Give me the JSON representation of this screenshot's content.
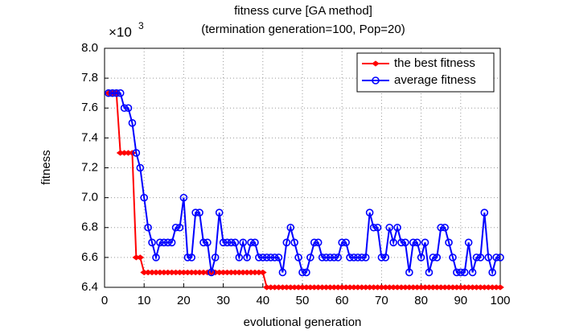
{
  "chart_data": {
    "type": "line",
    "title": "fitness curve [GA method]",
    "subtitle": "(termination generation=100, Pop=20)",
    "xlabel": "evolutional generation",
    "ylabel": "fitness",
    "multiplier_base": "×10",
    "multiplier_exponent": "3",
    "x": [
      1,
      2,
      3,
      4,
      5,
      6,
      7,
      8,
      9,
      10,
      11,
      12,
      13,
      14,
      15,
      16,
      17,
      18,
      19,
      20,
      21,
      22,
      23,
      24,
      25,
      26,
      27,
      28,
      29,
      30,
      31,
      32,
      33,
      34,
      35,
      36,
      37,
      38,
      39,
      40,
      41,
      42,
      43,
      44,
      45,
      46,
      47,
      48,
      49,
      50,
      51,
      52,
      53,
      54,
      55,
      56,
      57,
      58,
      59,
      60,
      61,
      62,
      63,
      64,
      65,
      66,
      67,
      68,
      69,
      70,
      71,
      72,
      73,
      74,
      75,
      76,
      77,
      78,
      79,
      80,
      81,
      82,
      83,
      84,
      85,
      86,
      87,
      88,
      89,
      90,
      91,
      92,
      93,
      94,
      95,
      96,
      97,
      98,
      99,
      100
    ],
    "series": [
      {
        "name": "the best fitness",
        "color": "#ff0000",
        "marker": "star",
        "values": [
          7.7,
          7.7,
          7.7,
          7.3,
          7.3,
          7.3,
          7.3,
          6.6,
          6.6,
          6.5,
          6.5,
          6.5,
          6.5,
          6.5,
          6.5,
          6.5,
          6.5,
          6.5,
          6.5,
          6.5,
          6.5,
          6.5,
          6.5,
          6.5,
          6.5,
          6.5,
          6.5,
          6.5,
          6.5,
          6.5,
          6.5,
          6.5,
          6.5,
          6.5,
          6.5,
          6.5,
          6.5,
          6.5,
          6.5,
          6.5,
          6.4,
          6.4,
          6.4,
          6.4,
          6.4,
          6.4,
          6.4,
          6.4,
          6.4,
          6.4,
          6.4,
          6.4,
          6.4,
          6.4,
          6.4,
          6.4,
          6.4,
          6.4,
          6.4,
          6.4,
          6.4,
          6.4,
          6.4,
          6.4,
          6.4,
          6.4,
          6.4,
          6.4,
          6.4,
          6.4,
          6.4,
          6.4,
          6.4,
          6.4,
          6.4,
          6.4,
          6.4,
          6.4,
          6.4,
          6.4,
          6.4,
          6.4,
          6.4,
          6.4,
          6.4,
          6.4,
          6.4,
          6.4,
          6.4,
          6.4,
          6.4,
          6.4,
          6.4,
          6.4,
          6.4,
          6.4,
          6.4,
          6.4,
          6.4,
          6.4
        ]
      },
      {
        "name": "average fitness",
        "color": "#0000ff",
        "marker": "circle",
        "values": [
          7.7,
          7.7,
          7.7,
          7.7,
          7.6,
          7.6,
          7.5,
          7.3,
          7.2,
          7.0,
          6.8,
          6.7,
          6.6,
          6.7,
          6.7,
          6.7,
          6.7,
          6.8,
          6.8,
          7.0,
          6.6,
          6.6,
          6.9,
          6.9,
          6.7,
          6.7,
          6.5,
          6.6,
          6.9,
          6.7,
          6.7,
          6.7,
          6.7,
          6.6,
          6.7,
          6.6,
          6.7,
          6.7,
          6.6,
          6.6,
          6.6,
          6.6,
          6.6,
          6.6,
          6.5,
          6.7,
          6.8,
          6.7,
          6.6,
          6.5,
          6.5,
          6.6,
          6.7,
          6.7,
          6.6,
          6.6,
          6.6,
          6.6,
          6.6,
          6.7,
          6.7,
          6.6,
          6.6,
          6.6,
          6.6,
          6.6,
          6.9,
          6.8,
          6.8,
          6.6,
          6.6,
          6.8,
          6.7,
          6.8,
          6.7,
          6.7,
          6.5,
          6.7,
          6.7,
          6.6,
          6.7,
          6.5,
          6.6,
          6.6,
          6.8,
          6.8,
          6.7,
          6.6,
          6.5,
          6.5,
          6.5,
          6.7,
          6.5,
          6.6,
          6.6,
          6.9,
          6.6,
          6.5,
          6.6,
          6.6
        ]
      }
    ],
    "xlim": [
      0,
      100
    ],
    "xticks": [
      0,
      10,
      20,
      30,
      40,
      50,
      60,
      70,
      80,
      90,
      100
    ],
    "ylim": [
      6.4,
      8.0
    ],
    "yticks": [
      6.4,
      6.6,
      6.8,
      {
        "value": 7,
        "label": "7.0"
      },
      7.2,
      7.4,
      7.6,
      7.8,
      {
        "value": 8,
        "label": "8.0"
      }
    ],
    "grid": true,
    "legend": "upper right"
  }
}
